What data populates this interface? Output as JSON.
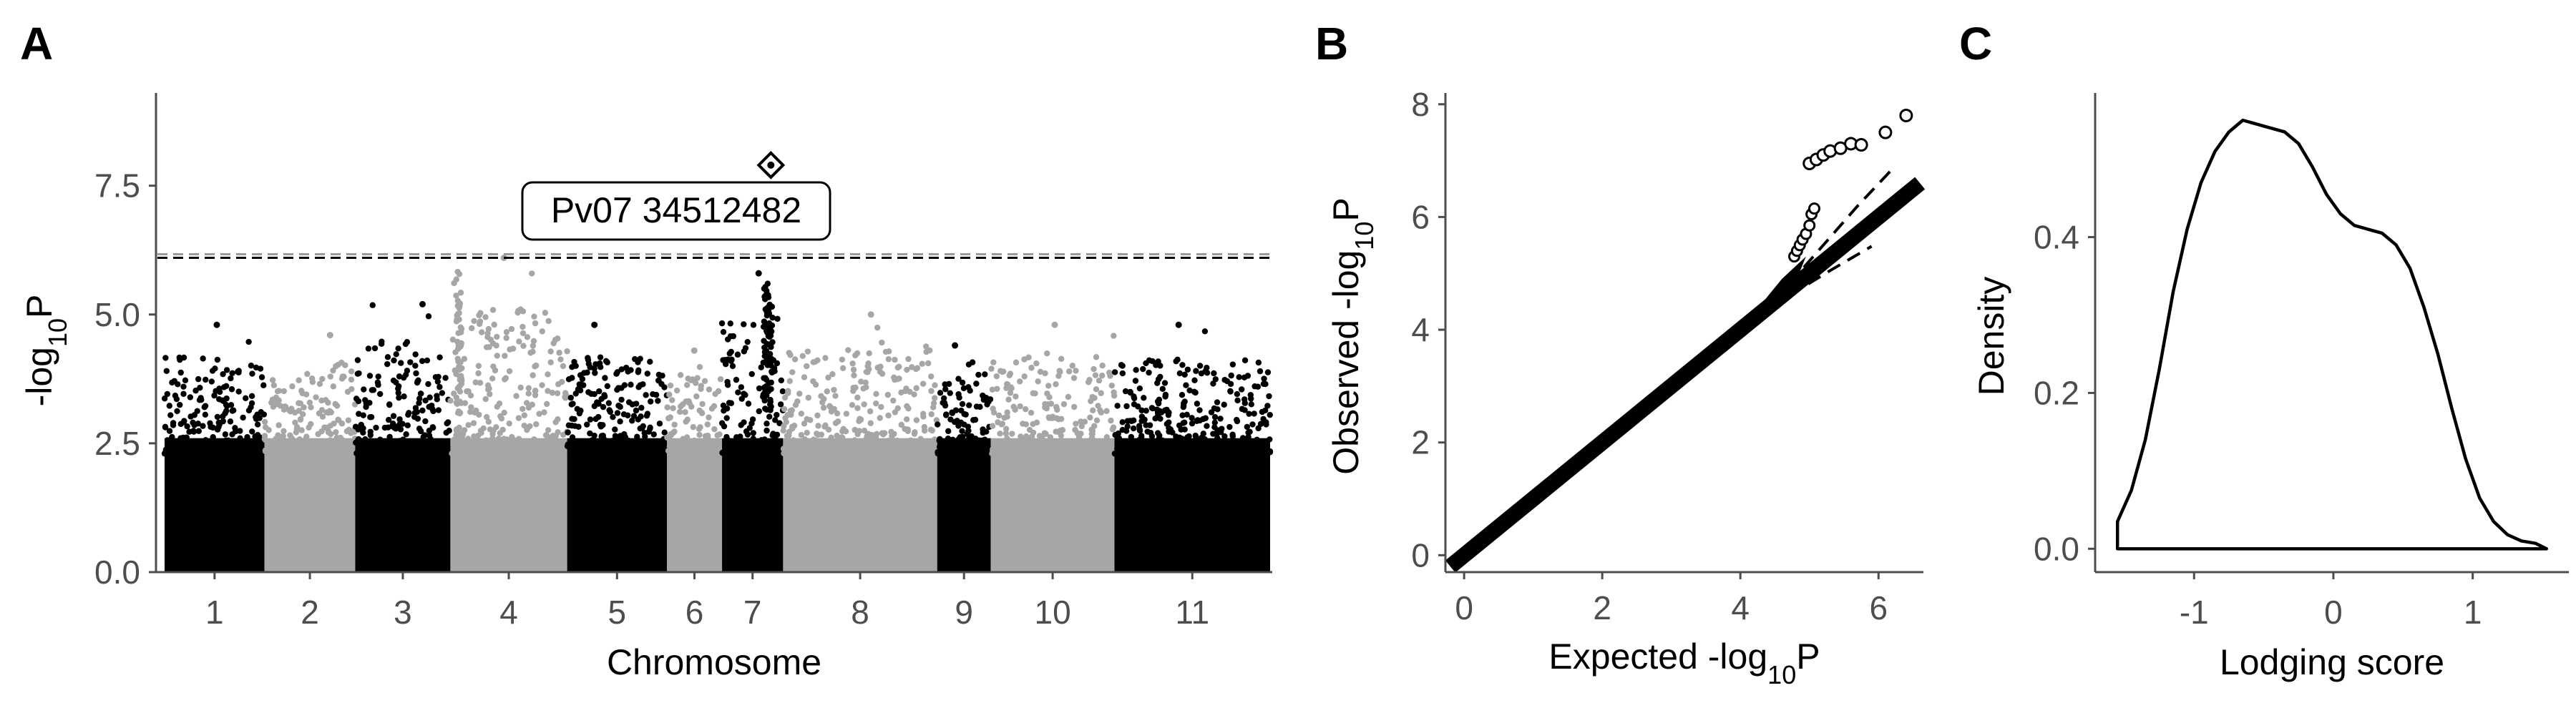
{
  "colors": {
    "odd_chromosome": "#000000",
    "even_chromosome": "#a6a6a6",
    "threshold_black": "#000000",
    "threshold_grey": "#9a9a9a",
    "axis": "#4d4d4d",
    "background": "#ffffff"
  },
  "chart_data": [
    {
      "type": "scatter",
      "panel": "A",
      "subtype": "manhattan",
      "xlabel": "Chromosome",
      "ylabel_main": "-log",
      "ylabel_sub": "10",
      "ylabel_end": "P",
      "ylim": [
        0,
        9.3
      ],
      "yticks": [
        0.0,
        2.5,
        5.0,
        7.5
      ],
      "ytick_labels": [
        "0.0",
        "2.5",
        "5.0",
        "7.5"
      ],
      "categories": [
        "1",
        "2",
        "3",
        "4",
        "5",
        "6",
        "7",
        "8",
        "9",
        "10",
        "11"
      ],
      "chromosome_spans": [
        {
          "name": "1",
          "start": 0,
          "end": 52.2,
          "peak": 4.8
        },
        {
          "name": "2",
          "start": 52.2,
          "end": 99.6,
          "peak": 4.6
        },
        {
          "name": "3",
          "start": 99.6,
          "end": 149.3,
          "peak": 5.2
        },
        {
          "name": "4",
          "start": 149.3,
          "end": 210.3,
          "peak": 6.1
        },
        {
          "name": "5",
          "start": 210.3,
          "end": 262.4,
          "peak": 4.8
        },
        {
          "name": "6",
          "start": 262.4,
          "end": 291.2,
          "peak": 4.3
        },
        {
          "name": "7",
          "start": 291.2,
          "end": 323.1,
          "peak": 5.8
        },
        {
          "name": "8",
          "start": 323.1,
          "end": 403.6,
          "peak": 5.0
        },
        {
          "name": "9",
          "start": 403.6,
          "end": 431.6,
          "peak": 4.4
        },
        {
          "name": "10",
          "start": 431.6,
          "end": 496.2,
          "peak": 4.8
        },
        {
          "name": "11",
          "start": 496.2,
          "end": 577.5,
          "peak": 4.8
        }
      ],
      "thresholds": [
        6.1,
        6.17
      ],
      "top_snp": {
        "chromosome": "7",
        "position": 34512482,
        "neglog10p": 7.9,
        "label": "Pv07 34512482"
      }
    },
    {
      "type": "scatter",
      "panel": "B",
      "subtype": "qq",
      "xlabel_main": "Expected -log",
      "xlabel_sub": "10",
      "xlabel_end": "P",
      "ylabel_main": "Observed -log",
      "ylabel_sub": "10",
      "ylabel_end": "P",
      "xlim": [
        -0.25,
        6.65
      ],
      "ylim": [
        -0.3,
        8.2
      ],
      "xticks": [
        0,
        2,
        4,
        6
      ],
      "xtick_labels": [
        "0",
        "2",
        "4",
        "6"
      ],
      "yticks": [
        0,
        2,
        4,
        6,
        8
      ],
      "ytick_labels": [
        "0",
        "2",
        "4",
        "6",
        "8"
      ],
      "observed_tail": [
        {
          "x": 5.0,
          "y": 6.95
        },
        {
          "x": 5.1,
          "y": 7.02
        },
        {
          "x": 5.2,
          "y": 7.1
        },
        {
          "x": 5.3,
          "y": 7.17
        },
        {
          "x": 5.45,
          "y": 7.22
        },
        {
          "x": 5.6,
          "y": 7.3
        },
        {
          "x": 5.75,
          "y": 7.28
        },
        {
          "x": 6.1,
          "y": 7.5
        },
        {
          "x": 6.4,
          "y": 7.8
        }
      ],
      "ci_upper": [
        [
          4.7,
          4.8
        ],
        [
          5.2,
          5.5
        ],
        [
          5.7,
          6.2
        ],
        [
          6.2,
          6.85
        ]
      ],
      "ci_lower": [
        [
          4.7,
          4.6
        ],
        [
          5.3,
          5.05
        ],
        [
          5.9,
          5.48
        ]
      ]
    },
    {
      "type": "line",
      "panel": "C",
      "subtype": "density",
      "xlabel": "Lodging score",
      "ylabel": "Density",
      "xlim": [
        -1.7,
        1.68
      ],
      "ylim": [
        -0.03,
        0.585
      ],
      "xticks": [
        -1,
        0,
        1
      ],
      "xtick_labels": [
        "-1",
        "0",
        "1"
      ],
      "yticks": [
        0.0,
        0.2,
        0.4
      ],
      "ytick_labels": [
        "0.0",
        "0.2",
        "0.4"
      ],
      "x": [
        -1.55,
        -1.45,
        -1.35,
        -1.25,
        -1.15,
        -1.05,
        -0.95,
        -0.85,
        -0.75,
        -0.65,
        -0.55,
        -0.45,
        -0.35,
        -0.25,
        -0.15,
        -0.05,
        0.05,
        0.15,
        0.25,
        0.35,
        0.45,
        0.55,
        0.65,
        0.75,
        0.85,
        0.95,
        1.05,
        1.15,
        1.25,
        1.35,
        1.45,
        1.53
      ],
      "y": [
        0.035,
        0.075,
        0.14,
        0.23,
        0.33,
        0.41,
        0.47,
        0.51,
        0.535,
        0.55,
        0.545,
        0.54,
        0.535,
        0.52,
        0.49,
        0.455,
        0.43,
        0.415,
        0.41,
        0.405,
        0.39,
        0.36,
        0.31,
        0.25,
        0.18,
        0.115,
        0.065,
        0.035,
        0.018,
        0.01,
        0.007,
        0.0
      ]
    }
  ],
  "panel_labels": [
    "A",
    "B",
    "C"
  ]
}
